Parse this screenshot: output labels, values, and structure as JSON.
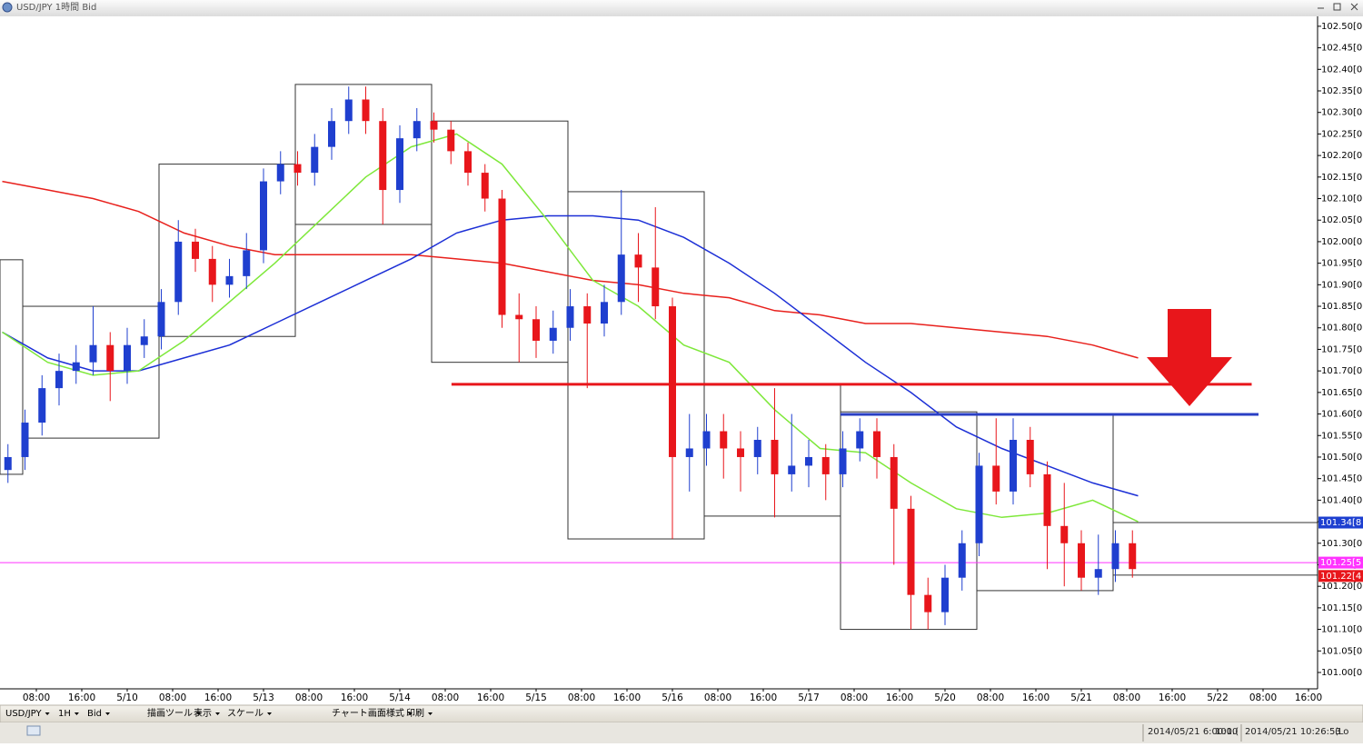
{
  "window_title": "USD/JPY 1時間 Bid",
  "chart_data": {
    "type": "candlestick",
    "x": [
      -5,
      -2,
      1,
      4,
      7,
      10,
      13,
      16,
      19,
      22,
      25,
      28,
      31,
      34,
      37,
      40,
      43,
      46,
      49,
      52,
      55,
      58,
      61,
      64,
      67,
      70,
      73,
      76,
      79,
      82,
      85,
      88,
      91,
      94,
      97,
      100,
      103,
      106,
      109,
      112,
      115,
      118,
      121,
      124,
      127,
      130,
      133,
      136,
      139,
      142,
      145,
      148,
      151,
      154,
      157,
      160,
      163,
      166,
      169,
      172,
      175,
      178,
      181,
      184,
      187,
      190,
      193
    ],
    "open": [
      101.47,
      101.5,
      101.58,
      101.66,
      101.7,
      101.72,
      101.76,
      101.7,
      101.76,
      101.78,
      101.86,
      102.0,
      101.96,
      101.9,
      101.92,
      101.98,
      102.14,
      102.18,
      102.16,
      102.22,
      102.28,
      102.33,
      102.28,
      102.12,
      102.24,
      102.28,
      102.26,
      102.21,
      102.16,
      102.1,
      101.83,
      101.82,
      101.77,
      101.8,
      101.85,
      101.81,
      101.86,
      101.97,
      101.94,
      101.85,
      101.5,
      101.52,
      101.56,
      101.52,
      101.5,
      101.54,
      101.46,
      101.48,
      101.5,
      101.46,
      101.52,
      101.56,
      101.5,
      101.38,
      101.18,
      101.14,
      101.22,
      101.3,
      101.48,
      101.42,
      101.54,
      101.46,
      101.34,
      101.3,
      101.22,
      101.24,
      101.3
    ],
    "high": [
      101.53,
      101.61,
      101.69,
      101.74,
      101.76,
      101.85,
      101.79,
      101.8,
      101.82,
      101.89,
      102.05,
      102.03,
      101.99,
      101.96,
      102.02,
      102.17,
      102.21,
      102.21,
      102.25,
      102.31,
      102.36,
      102.36,
      102.31,
      102.27,
      102.31,
      102.3,
      102.28,
      102.23,
      102.18,
      102.12,
      101.88,
      101.85,
      101.84,
      101.89,
      101.88,
      101.9,
      102.12,
      102.02,
      102.08,
      101.87,
      101.6,
      101.6,
      101.6,
      101.56,
      101.57,
      101.66,
      101.6,
      101.54,
      101.53,
      101.56,
      101.59,
      101.59,
      101.53,
      101.41,
      101.22,
      101.25,
      101.33,
      101.51,
      101.59,
      101.59,
      101.57,
      101.49,
      101.44,
      101.33,
      101.32,
      101.33,
      101.33
    ],
    "low": [
      101.44,
      101.47,
      101.55,
      101.62,
      101.67,
      101.69,
      101.63,
      101.67,
      101.73,
      101.75,
      101.83,
      101.93,
      101.86,
      101.87,
      101.89,
      101.95,
      102.11,
      102.13,
      102.13,
      102.19,
      102.25,
      102.25,
      102.04,
      102.09,
      102.21,
      102.23,
      102.18,
      102.13,
      102.07,
      101.8,
      101.72,
      101.73,
      101.74,
      101.77,
      101.66,
      101.78,
      101.83,
      101.86,
      101.82,
      101.31,
      101.42,
      101.48,
      101.45,
      101.42,
      101.46,
      101.36,
      101.42,
      101.43,
      101.4,
      101.43,
      101.49,
      101.45,
      101.25,
      101.1,
      101.1,
      101.11,
      101.19,
      101.27,
      101.39,
      101.39,
      101.43,
      101.24,
      101.2,
      101.19,
      101.18,
      101.21,
      101.22
    ],
    "close": [
      101.5,
      101.58,
      101.66,
      101.7,
      101.72,
      101.76,
      101.7,
      101.76,
      101.78,
      101.86,
      102.0,
      101.96,
      101.9,
      101.92,
      101.98,
      102.14,
      102.18,
      102.16,
      102.22,
      102.28,
      102.33,
      102.28,
      102.12,
      102.24,
      102.28,
      102.26,
      102.21,
      102.16,
      102.1,
      101.83,
      101.82,
      101.77,
      101.8,
      101.85,
      101.81,
      101.86,
      101.97,
      101.94,
      101.85,
      101.5,
      101.52,
      101.56,
      101.52,
      101.5,
      101.54,
      101.46,
      101.48,
      101.5,
      101.46,
      101.52,
      101.56,
      101.5,
      101.38,
      101.18,
      101.14,
      101.22,
      101.3,
      101.48,
      101.42,
      101.54,
      101.46,
      101.34,
      101.3,
      101.22,
      101.24,
      101.3,
      101.24
    ],
    "up_color": "#1f3fcf",
    "down_color": "#e8161b",
    "xlim": [
      -6.4,
      225.6
    ],
    "xticks": [
      {
        "value": 0,
        "label": "08:00"
      },
      {
        "value": 8,
        "label": "16:00"
      },
      {
        "value": 16,
        "label": "5/10"
      },
      {
        "value": 24,
        "label": "08:00"
      },
      {
        "value": 32,
        "label": "16:00"
      },
      {
        "value": 40,
        "label": "5/13"
      },
      {
        "value": 48,
        "label": "08:00"
      },
      {
        "value": 56,
        "label": "16:00"
      },
      {
        "value": 64,
        "label": "5/14"
      },
      {
        "value": 72,
        "label": "08:00"
      },
      {
        "value": 80,
        "label": "16:00"
      },
      {
        "value": 88,
        "label": "5/15"
      },
      {
        "value": 96,
        "label": "08:00"
      },
      {
        "value": 104,
        "label": "16:00"
      },
      {
        "value": 112,
        "label": "5/16"
      },
      {
        "value": 120,
        "label": "08:00"
      },
      {
        "value": 128,
        "label": "16:00"
      },
      {
        "value": 136,
        "label": "5/17"
      },
      {
        "value": 144,
        "label": "08:00"
      },
      {
        "value": 152,
        "label": "16:00"
      },
      {
        "value": 160,
        "label": "5/20"
      },
      {
        "value": 168,
        "label": "08:00"
      },
      {
        "value": 176,
        "label": "16:00"
      },
      {
        "value": 184,
        "label": "5/21"
      },
      {
        "value": 192,
        "label": "08:00"
      },
      {
        "value": 200,
        "label": "16:00"
      },
      {
        "value": 208,
        "label": "5/22"
      },
      {
        "value": 216,
        "label": "08:00"
      },
      {
        "value": 224,
        "label": "16:00"
      }
    ],
    "ylim": [
      100.962,
      102.523
    ],
    "yticks": [
      {
        "value": 102.5,
        "label": "102.50[0]"
      },
      {
        "value": 102.45,
        "label": "102.45[0]"
      },
      {
        "value": 102.4,
        "label": "102.40[0]"
      },
      {
        "value": 102.35,
        "label": "102.35[0]"
      },
      {
        "value": 102.3,
        "label": "102.30[0]"
      },
      {
        "value": 102.25,
        "label": "102.25[0]"
      },
      {
        "value": 102.2,
        "label": "102.20[0]"
      },
      {
        "value": 102.15,
        "label": "102.15[0]"
      },
      {
        "value": 102.1,
        "label": "102.10[0]"
      },
      {
        "value": 102.05,
        "label": "102.05[0]"
      },
      {
        "value": 102.0,
        "label": "102.00[0]"
      },
      {
        "value": 101.95,
        "label": "101.95[0]"
      },
      {
        "value": 101.9,
        "label": "101.90[0]"
      },
      {
        "value": 101.85,
        "label": "101.85[0]"
      },
      {
        "value": 101.8,
        "label": "101.80[0]"
      },
      {
        "value": 101.75,
        "label": "101.75[0]"
      },
      {
        "value": 101.7,
        "label": "101.70[0]"
      },
      {
        "value": 101.65,
        "label": "101.65[0]"
      },
      {
        "value": 101.6,
        "label": "101.60[0]"
      },
      {
        "value": 101.55,
        "label": "101.55[0]"
      },
      {
        "value": 101.5,
        "label": "101.50[0]"
      },
      {
        "value": 101.45,
        "label": "101.45[0]"
      },
      {
        "value": 101.4,
        "label": "101.40[0]"
      },
      {
        "value": 101.35,
        "label": "101.35[0]"
      },
      {
        "value": 101.3,
        "label": "101.30[0]"
      },
      {
        "value": 101.25,
        "label": "101.25[0]"
      },
      {
        "value": 101.2,
        "label": "101.20[0]"
      },
      {
        "value": 101.15,
        "label": "101.15[0]"
      },
      {
        "value": 101.1,
        "label": "101.10[0]"
      },
      {
        "value": 101.05,
        "label": "101.05[0]"
      },
      {
        "value": 101.0,
        "label": "101.00[0]"
      }
    ],
    "moving_averages": [
      {
        "color": "#e8201c",
        "x": [
          -6,
          2,
          10,
          18,
          26,
          34,
          42,
          50,
          58,
          66,
          74,
          82,
          90,
          98,
          106,
          114,
          122,
          130,
          138,
          146,
          154,
          162,
          170,
          178,
          186,
          194
        ],
        "values": [
          102.14,
          102.12,
          102.1,
          102.07,
          102.02,
          101.99,
          101.97,
          101.97,
          101.97,
          101.97,
          101.96,
          101.95,
          101.93,
          101.91,
          101.9,
          101.88,
          101.87,
          101.84,
          101.83,
          101.81,
          101.81,
          101.8,
          101.79,
          101.78,
          101.76,
          101.73
        ]
      },
      {
        "color": "#1c2fd6",
        "x": [
          -6,
          2,
          10,
          18,
          26,
          34,
          42,
          50,
          58,
          66,
          74,
          82,
          90,
          98,
          106,
          114,
          122,
          130,
          138,
          146,
          154,
          162,
          170,
          178,
          186,
          194
        ],
        "values": [
          101.79,
          101.73,
          101.7,
          101.7,
          101.73,
          101.76,
          101.81,
          101.86,
          101.91,
          101.96,
          102.02,
          102.05,
          102.06,
          102.06,
          102.05,
          102.01,
          101.95,
          101.88,
          101.8,
          101.72,
          101.65,
          101.57,
          101.52,
          101.48,
          101.44,
          101.41
        ]
      },
      {
        "color": "#7ee83a",
        "x": [
          -6,
          2,
          10,
          18,
          26,
          34,
          42,
          50,
          58,
          66,
          74,
          82,
          90,
          98,
          106,
          114,
          122,
          130,
          138,
          146,
          154,
          162,
          170,
          178,
          186,
          194
        ],
        "values": [
          101.79,
          101.72,
          101.69,
          101.7,
          101.77,
          101.86,
          101.95,
          102.05,
          102.15,
          102.22,
          102.25,
          102.18,
          102.05,
          101.91,
          101.85,
          101.76,
          101.72,
          101.61,
          101.52,
          101.51,
          101.44,
          101.38,
          101.36,
          101.37,
          101.4,
          101.35
        ]
      }
    ],
    "ranges": [
      {
        "x": [
          -6.4,
          -2.4
        ],
        "high": 101.958,
        "low": 101.46
      },
      {
        "x": [
          -2.4,
          21.6
        ],
        "high": 101.85,
        "low": 101.544
      },
      {
        "x": [
          21.6,
          45.6
        ],
        "high": 102.18,
        "low": 101.78
      },
      {
        "x": [
          45.6,
          69.6
        ],
        "high": 102.365,
        "low": 102.04
      },
      {
        "x": [
          69.6,
          93.6
        ],
        "high": 102.28,
        "low": 101.72
      },
      {
        "x": [
          93.6,
          117.6
        ],
        "high": 102.116,
        "low": 101.31
      },
      {
        "x": [
          117.6,
          141.6
        ],
        "high": 101.667,
        "low": 101.363
      },
      {
        "x": [
          141.6,
          165.6
        ],
        "high": 101.605,
        "low": 101.1
      },
      {
        "x": [
          165.6,
          189.6
        ],
        "high": 101.6,
        "low": 101.19
      },
      {
        "x": [
          189.6,
          225.6
        ],
        "high": 101.348,
        "low": 101.226
      }
    ],
    "levels": [
      {
        "value": 101.669,
        "color": "#e8161b",
        "x": [
          73.1,
          214
        ]
      },
      {
        "value": 101.599,
        "color": "#2a3fc4",
        "x": [
          141.6,
          215.2
        ]
      }
    ],
    "current_price": {
      "value": 101.255,
      "color": "#ff33ff"
    },
    "price_labels": [
      {
        "value": 101.348,
        "label": "101.34[8",
        "color": "#1d3fd0"
      },
      {
        "value": 101.255,
        "label": "101.25[5",
        "color": "#ff33ff"
      },
      {
        "value": 101.224,
        "label": "101.22[4",
        "color": "#e8161b"
      }
    ]
  },
  "toolbar": [
    "USD/JPY",
    "1H",
    "Bid",
    "描画ツール",
    "表示",
    "スケール",
    "チャート画面様式",
    "印刷"
  ],
  "status": [
    "2014/05/21 6:00:00",
    "101.(",
    "2014/05/21 10:26:53",
    "(Lo"
  ]
}
